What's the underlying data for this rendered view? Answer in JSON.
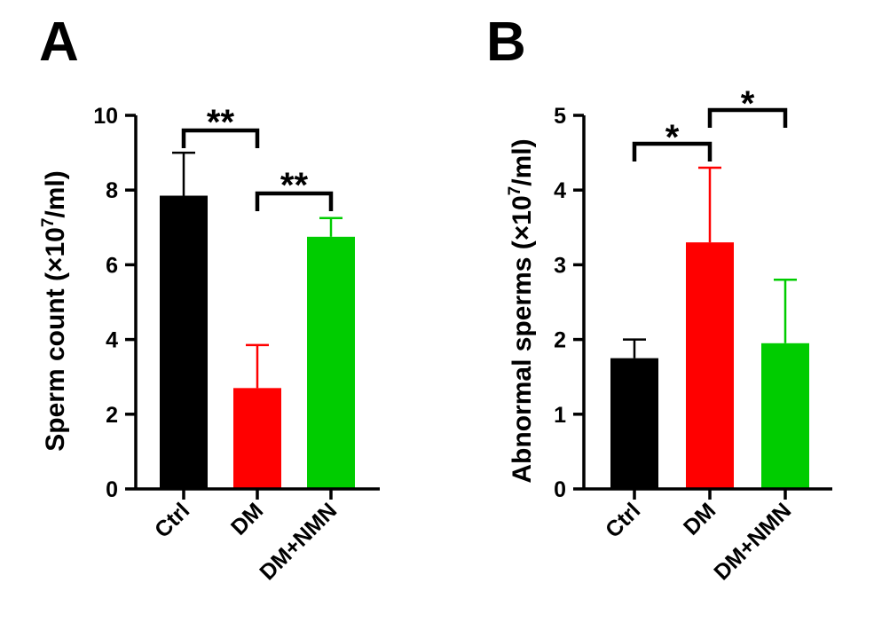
{
  "chart_data": [
    {
      "type": "bar",
      "panel": "A",
      "ylabel": "Sperm count (×10",
      "ylabel_sup": "7",
      "ylabel_tail": "/ml)",
      "categories": [
        "Ctrl",
        "DM",
        "DM+NMN"
      ],
      "values": [
        7.85,
        2.7,
        6.75
      ],
      "errors": [
        1.15,
        1.15,
        0.5
      ],
      "colors": [
        "#000000",
        "#ff0000",
        "#00cc00"
      ],
      "ylim": [
        0,
        10
      ],
      "yticks": [
        "0",
        "2",
        "4",
        "6",
        "8",
        "10"
      ],
      "grid": false,
      "significance": [
        {
          "from": 0,
          "to": 1,
          "label": "**"
        },
        {
          "from": 1,
          "to": 2,
          "label": "**"
        }
      ]
    },
    {
      "type": "bar",
      "panel": "B",
      "ylabel": "Abnormal sperms (×10",
      "ylabel_sup": "7",
      "ylabel_tail": "/ml)",
      "categories": [
        "Ctrl",
        "DM",
        "DM+NMN"
      ],
      "values": [
        1.75,
        3.3,
        1.95
      ],
      "errors": [
        0.25,
        1.0,
        0.85
      ],
      "colors": [
        "#000000",
        "#ff0000",
        "#00cc00"
      ],
      "ylim": [
        0,
        5
      ],
      "yticks": [
        "0",
        "1",
        "2",
        "3",
        "4",
        "5"
      ],
      "grid": false,
      "significance": [
        {
          "from": 0,
          "to": 1,
          "label": "*"
        },
        {
          "from": 1,
          "to": 2,
          "label": "*"
        }
      ]
    }
  ]
}
